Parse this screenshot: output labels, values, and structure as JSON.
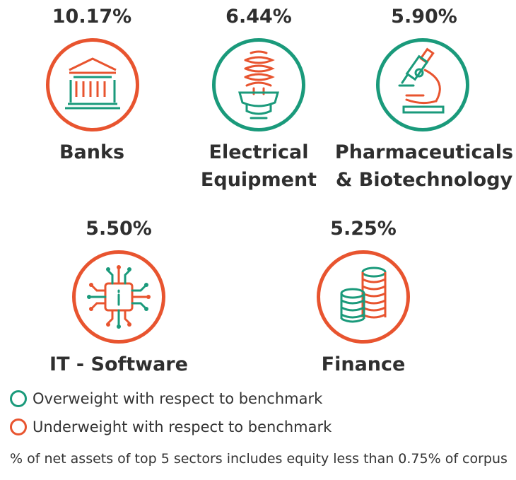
{
  "chart_data": {
    "type": "table",
    "title": "",
    "categories": [
      "Banks",
      "Electrical Equipment",
      "Pharmaceuticals & Biotechnology",
      "IT - Software",
      "Finance"
    ],
    "values": [
      10.17,
      6.44,
      5.9,
      5.5,
      5.25
    ],
    "labels": [
      "10.17%",
      "6.44%",
      "5.90%",
      "5.50%",
      "5.25%"
    ],
    "weighting": [
      "Underweight",
      "Overweight",
      "Overweight",
      "Underweight",
      "Underweight"
    ],
    "sectors": [
      {
        "pct": "10.17%",
        "name_line1": "Banks",
        "name_line2": "",
        "icon": "bank-icon",
        "weight": "under"
      },
      {
        "pct": "6.44%",
        "name_line1": "Electrical",
        "name_line2": "Equipment",
        "icon": "light-bulb-icon",
        "weight": "over"
      },
      {
        "pct": "5.90%",
        "name_line1": "Pharmaceuticals",
        "name_line2": "& Biotechnology",
        "icon": "microscope-icon",
        "weight": "over"
      },
      {
        "pct": "5.50%",
        "name_line1": "IT - Software",
        "name_line2": "",
        "icon": "chip-icon",
        "weight": "under"
      },
      {
        "pct": "5.25%",
        "name_line1": "Finance",
        "name_line2": "",
        "icon": "coins-icon",
        "weight": "under"
      }
    ],
    "legend": [
      {
        "label": "Overweight with respect to benchmark",
        "color": "#1a9a7b"
      },
      {
        "label": "Underweight with respect to benchmark",
        "color": "#e8542f"
      }
    ],
    "footnote": "% of net assets of top 5 sectors includes equity less than 0.75% of corpus"
  },
  "colors": {
    "overweight": "#1a9a7b",
    "underweight": "#e8542f",
    "text": "#2f2f2f"
  }
}
